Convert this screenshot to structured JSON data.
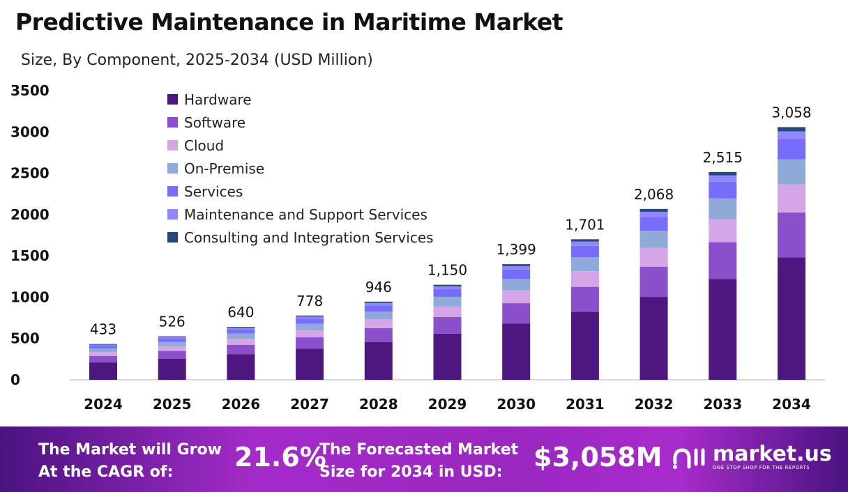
{
  "title": "Predictive Maintenance in Maritime Market",
  "subtitle": "Size, By Component, 2025-2034 (USD Million)",
  "chart_data": {
    "type": "bar",
    "stacked": true,
    "categories": [
      "2024",
      "2025",
      "2026",
      "2027",
      "2028",
      "2029",
      "2030",
      "2031",
      "2032",
      "2033",
      "2034"
    ],
    "totals": [
      433,
      526,
      640,
      778,
      946,
      1150,
      1399,
      1701,
      2068,
      2515,
      3058
    ],
    "total_labels": [
      "433",
      "526",
      "640",
      "778",
      "946",
      "1,150",
      "1,399",
      "1,701",
      "2,068",
      "2,515",
      "3,058"
    ],
    "series": [
      {
        "name": "Hardware",
        "color": "#4e1780",
        "values": [
          210,
          256,
          311,
          376,
          458,
          557,
          679,
          824,
          1003,
          1219,
          1482
        ]
      },
      {
        "name": "Software",
        "color": "#8c4fcc",
        "values": [
          77,
          93,
          113,
          138,
          168,
          204,
          248,
          301,
          366,
          446,
          542
        ]
      },
      {
        "name": "Cloud",
        "color": "#d4a6e8",
        "values": [
          48,
          58,
          71,
          86,
          105,
          128,
          155,
          189,
          229,
          279,
          339
        ]
      },
      {
        "name": "On-Premise",
        "color": "#8faad9",
        "values": [
          43,
          52,
          64,
          78,
          94,
          115,
          139,
          170,
          206,
          251,
          305
        ]
      },
      {
        "name": "Services",
        "color": "#776dfc",
        "values": [
          35,
          42,
          51,
          63,
          76,
          92,
          112,
          137,
          166,
          202,
          246
        ]
      },
      {
        "name": "Maintenance and Support Services",
        "color": "#8f87fb",
        "values": [
          13,
          16,
          19,
          24,
          29,
          35,
          43,
          52,
          63,
          76,
          93
        ]
      },
      {
        "name": "Consulting and Integration Services",
        "color": "#24487e",
        "values": [
          7,
          9,
          11,
          13,
          16,
          19,
          23,
          28,
          35,
          42,
          51
        ]
      }
    ],
    "yticks": [
      "0",
      "500",
      "1000",
      "1500",
      "2000",
      "2500",
      "3000",
      "3500"
    ],
    "ylim": [
      0,
      3500
    ],
    "grid": false,
    "legend": "top-left"
  },
  "footer": {
    "cagr_label_1": "The Market will Grow",
    "cagr_label_2": "At the CAGR of:",
    "cagr_value": "21.6%",
    "size_label_1": "The Forecasted Market",
    "size_label_2": "Size for 2034 in USD:",
    "size_value": "$3,058M",
    "logo_text": "market.us",
    "logo_tagline": "ONE STOP SHOP FOR THE REPORTS"
  }
}
